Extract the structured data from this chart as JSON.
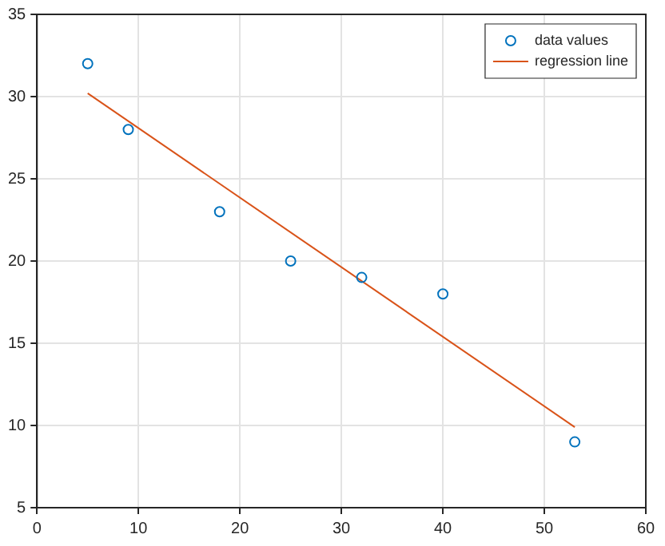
{
  "chart_data": {
    "type": "scatter",
    "xlim": [
      0,
      60
    ],
    "xticks": [
      0,
      10,
      20,
      30,
      40,
      50,
      60
    ],
    "ylim": [
      5,
      35
    ],
    "yticks": [
      5,
      10,
      15,
      20,
      25,
      30,
      35
    ],
    "grid": true,
    "legend": "top right",
    "series": [
      {
        "name": "data values",
        "type": "scatter",
        "marker": "circle",
        "color": "#0072bd",
        "x": [
          5,
          9,
          18,
          25,
          32,
          40,
          53
        ],
        "values": [
          32,
          28,
          23,
          20,
          19,
          18,
          9
        ]
      },
      {
        "name": "regression line",
        "type": "line",
        "line_style": "solid",
        "color": "#d95319",
        "x": [
          5,
          53
        ],
        "values": [
          30.2,
          9.9
        ]
      }
    ]
  }
}
